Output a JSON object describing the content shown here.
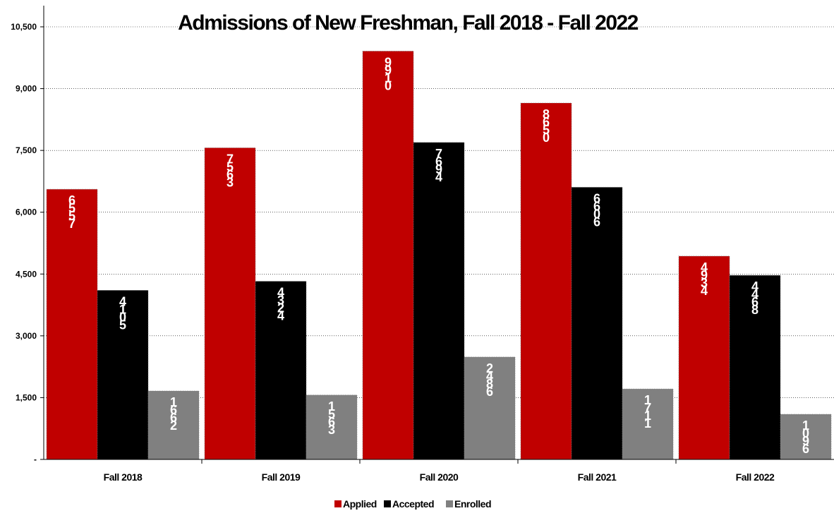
{
  "chart_data": {
    "type": "bar",
    "title": "Admissions of New Freshman, Fall 2018 - Fall 2022",
    "xlabel": "",
    "ylabel": "",
    "categories": [
      "Fall 2018",
      "Fall 2019",
      "Fall 2020",
      "Fall 2021",
      "Fall 2022"
    ],
    "series": [
      {
        "name": "Applied",
        "color": "#c00000",
        "values": [
          6557,
          7563,
          9910,
          8650,
          4934
        ]
      },
      {
        "name": "Accepted",
        "color": "#000000",
        "values": [
          4105,
          4324,
          7694,
          6606,
          4468
        ]
      },
      {
        "name": "Enrolled",
        "color": "#808080",
        "values": [
          1662,
          1563,
          2486,
          1711,
          1096
        ]
      }
    ],
    "data_labels": [
      [
        "6\n5\n5\n7",
        "4\n1\n0\n5",
        "1\n6\n6\n2"
      ],
      [
        "7\n5\n6\n3",
        "4\n3\n2\n4",
        "1\n5\n6\n3"
      ],
      [
        "9\n9\n1\n0",
        "7\n6\n9\n4",
        "2\n4\n8\n6"
      ],
      [
        "8\n6\n5\n0",
        "6\n6\n0\n6",
        "1\n7\n1\n1"
      ],
      [
        "4\n9\n3\n4",
        "4\n4\n6\n8",
        "1\n0\n9\n6"
      ]
    ],
    "ylim": [
      0,
      10500
    ],
    "yticks": [
      0,
      1500,
      3000,
      4500,
      6000,
      7500,
      9000,
      10500
    ],
    "ytick_labels": [
      "-",
      "1,500",
      "3,000",
      "4,500",
      "6,000",
      "7,500",
      "9,000",
      "10,500"
    ],
    "grid": true,
    "legend": "bottom"
  }
}
